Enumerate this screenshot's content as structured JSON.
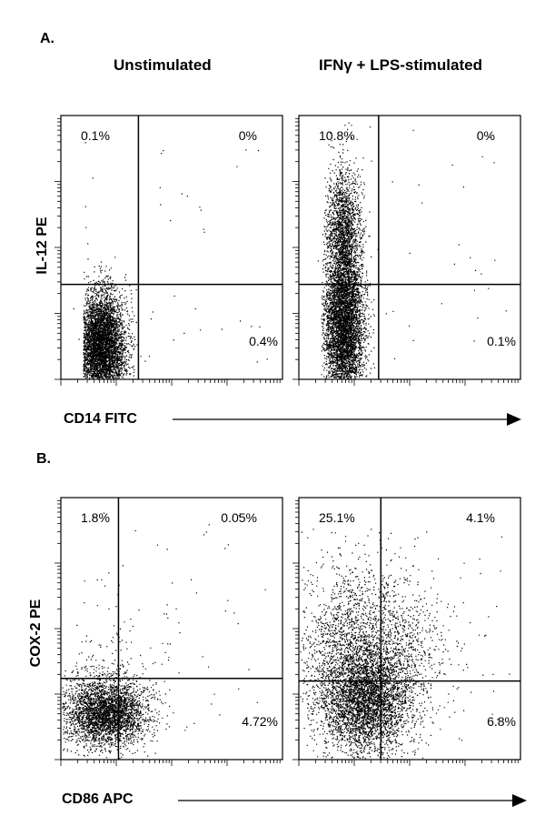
{
  "panels": {
    "A": {
      "letter": "A.",
      "column_titles": [
        "Unstimulated",
        "IFNγ + LPS-stimulated"
      ],
      "y_label": "IL-12  PE",
      "x_label": "CD14 FITC"
    },
    "B": {
      "letter": "B.",
      "y_label": "COX-2 PE",
      "x_label": "CD86 APC"
    }
  },
  "colors": {
    "axis": "#000000",
    "dots": "#000000",
    "background": "#ffffff"
  },
  "chart_data": [
    {
      "type": "scatter",
      "title": "Unstimulated",
      "xlabel": "CD14 FITC",
      "ylabel": "IL-12  PE",
      "scale": "log",
      "quadrants": {
        "upper_left": "0.1%",
        "upper_right": "0%",
        "lower_left": "",
        "lower_right": "0.4%"
      },
      "gate": {
        "x": 0.35,
        "y": 0.36
      },
      "populations": [
        {
          "cx": 0.18,
          "cy": 0.13,
          "sx": 0.055,
          "sy": 0.1,
          "n": 5200,
          "clip_x": [
            0.1,
            0.35
          ]
        },
        {
          "cx": 0.2,
          "cy": 0.28,
          "sx": 0.04,
          "sy": 0.07,
          "n": 40,
          "clip_x": [
            0.12,
            0.34
          ]
        }
      ]
    },
    {
      "type": "scatter",
      "title": "IFNγ + LPS-stimulated",
      "xlabel": "CD14 FITC",
      "ylabel": "IL-12  PE",
      "scale": "log",
      "quadrants": {
        "upper_left": "10.8%",
        "upper_right": "0%",
        "lower_left": "",
        "lower_right": "0.1%"
      },
      "gate": {
        "x": 0.36,
        "y": 0.36
      },
      "populations": [
        {
          "cx": 0.2,
          "cy": 0.2,
          "sx": 0.045,
          "sy": 0.15,
          "n": 5000,
          "clip_x": [
            0.1,
            0.34
          ]
        },
        {
          "cx": 0.2,
          "cy": 0.55,
          "sx": 0.04,
          "sy": 0.13,
          "n": 1800,
          "clip_x": [
            0.11,
            0.33
          ]
        }
      ]
    },
    {
      "type": "scatter",
      "title": "",
      "xlabel": "CD86 APC",
      "ylabel": "COX-2 PE",
      "scale": "log",
      "quadrants": {
        "upper_left": "1.8%",
        "upper_right": "0.05%",
        "lower_left": "",
        "lower_right": "4.72%"
      },
      "gate": {
        "x": 0.26,
        "y": 0.31
      },
      "populations": [
        {
          "cx": 0.2,
          "cy": 0.18,
          "sx": 0.09,
          "sy": 0.065,
          "n": 3200,
          "clip_x": [
            0.0,
            1.0
          ]
        },
        {
          "cx": 0.22,
          "cy": 0.28,
          "sx": 0.14,
          "sy": 0.15,
          "n": 260,
          "clip_x": [
            0.0,
            1.0
          ]
        }
      ]
    },
    {
      "type": "scatter",
      "title": "",
      "xlabel": "CD86 APC",
      "ylabel": "COX-2 PE",
      "scale": "log",
      "quadrants": {
        "upper_left": "25.1%",
        "upper_right": "4.1%",
        "lower_left": "",
        "lower_right": "6.8%"
      },
      "gate": {
        "x": 0.37,
        "y": 0.3
      },
      "populations": [
        {
          "cx": 0.3,
          "cy": 0.22,
          "sx": 0.1,
          "sy": 0.1,
          "n": 3400,
          "clip_x": [
            0.0,
            1.0
          ]
        },
        {
          "cx": 0.3,
          "cy": 0.42,
          "sx": 0.16,
          "sy": 0.16,
          "n": 2600,
          "clip_x": [
            0.0,
            1.0
          ]
        }
      ]
    }
  ]
}
